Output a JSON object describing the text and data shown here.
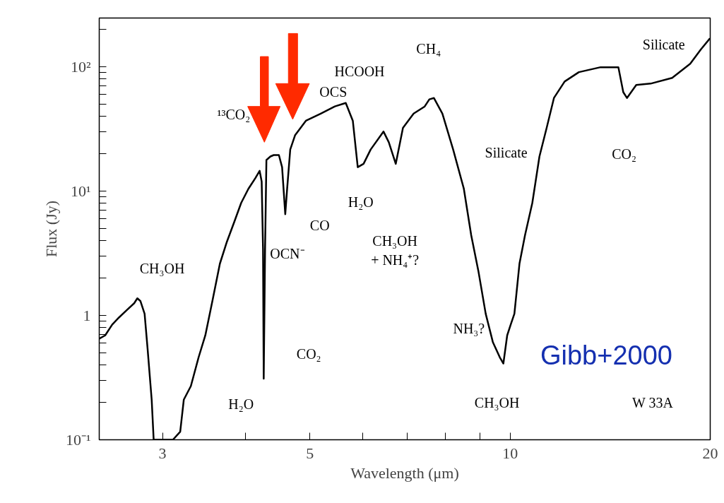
{
  "chart_data": {
    "type": "line",
    "xlabel": "Wavelength (μm)",
    "ylabel": "Flux (Jy)",
    "log": "xy",
    "xlim": [
      2.41,
      20.0
    ],
    "ylim": [
      0.1,
      245
    ],
    "xticks": [
      3,
      {
        "value": 4,
        "label": null
      },
      5,
      {
        "value": 6,
        "label": null
      },
      {
        "value": 7,
        "label": null
      },
      {
        "value": 8,
        "label": null
      },
      {
        "value": 9,
        "label": null
      },
      10,
      20
    ],
    "yticks": [
      {
        "value": 0.1,
        "label": "10⁻¹"
      },
      {
        "value": 0.2,
        "label": null
      },
      {
        "value": 0.3,
        "label": null
      },
      {
        "value": 0.4,
        "label": null
      },
      {
        "value": 0.5,
        "label": null
      },
      {
        "value": 0.6,
        "label": null
      },
      {
        "value": 0.7,
        "label": null
      },
      {
        "value": 0.8,
        "label": null
      },
      {
        "value": 0.9,
        "label": null
      },
      1,
      {
        "value": 2,
        "label": null
      },
      {
        "value": 3,
        "label": null
      },
      {
        "value": 4,
        "label": null
      },
      {
        "value": 5,
        "label": null
      },
      {
        "value": 6,
        "label": null
      },
      {
        "value": 7,
        "label": null
      },
      {
        "value": 8,
        "label": null
      },
      {
        "value": 9,
        "label": null
      },
      {
        "value": 10,
        "label": "10¹"
      },
      {
        "value": 20,
        "label": null
      },
      {
        "value": 30,
        "label": null
      },
      {
        "value": 40,
        "label": null
      },
      {
        "value": 50,
        "label": null
      },
      {
        "value": 60,
        "label": null
      },
      {
        "value": 70,
        "label": null
      },
      {
        "value": 80,
        "label": null
      },
      {
        "value": 90,
        "label": null
      },
      {
        "value": 100,
        "label": "10²"
      },
      {
        "value": 200,
        "label": null
      }
    ],
    "grid": false,
    "series": [
      {
        "color": "#000000",
        "x": [
          2.41,
          2.46,
          2.52,
          2.58,
          2.65,
          2.72,
          2.75,
          2.78,
          2.82,
          2.85,
          2.89,
          2.91,
          3.0,
          3.11,
          3.19,
          3.23,
          3.31,
          3.4,
          3.48,
          3.57,
          3.66,
          3.75,
          3.85,
          3.94,
          4.04,
          4.14,
          4.2,
          4.23,
          4.25,
          4.26,
          4.28,
          4.3,
          4.36,
          4.41,
          4.49,
          4.54,
          4.59,
          4.62,
          4.67,
          4.75,
          4.93,
          5.19,
          5.45,
          5.66,
          5.8,
          5.9,
          6.02,
          6.17,
          6.45,
          6.57,
          6.73,
          6.9,
          7.16,
          7.44,
          7.56,
          7.68,
          7.91,
          8.21,
          8.52,
          8.74,
          8.96,
          9.19,
          9.42,
          9.65,
          9.77,
          9.9,
          10.02,
          10.15,
          10.33,
          10.53,
          10.8,
          11.07,
          11.35,
          11.64,
          12.08,
          12.69,
          13.68,
          14.55,
          14.8,
          14.99,
          15.48,
          16.27,
          17.53,
          18.66,
          19.36,
          19.98
        ],
        "values": [
          0.65,
          0.69,
          0.84,
          0.96,
          1.1,
          1.25,
          1.37,
          1.3,
          1.03,
          0.53,
          0.21,
          0.1,
          0.1,
          0.1,
          0.116,
          0.21,
          0.27,
          0.46,
          0.69,
          1.34,
          2.6,
          3.9,
          5.7,
          8.0,
          10.4,
          12.7,
          14.5,
          11.9,
          3.4,
          0.31,
          3.4,
          17.7,
          18.9,
          19.4,
          19.4,
          15.5,
          6.5,
          10.4,
          21.5,
          28.1,
          36.6,
          41.8,
          47.7,
          50.9,
          36.6,
          15.5,
          16.5,
          21.5,
          30.0,
          24.6,
          16.5,
          32.1,
          41.8,
          47.7,
          54.4,
          55.8,
          41.8,
          21.5,
          10.4,
          4.4,
          2.27,
          1.03,
          0.61,
          0.46,
          0.41,
          0.69,
          0.84,
          1.03,
          2.6,
          4.4,
          8.0,
          18.9,
          32.1,
          55.8,
          75.7,
          90,
          98.6,
          98.6,
          62.1,
          55.8,
          71,
          72.8,
          81,
          105,
          137,
          168
        ]
      }
    ],
    "annotations": [
      "¹³CO₂",
      "OCS",
      "OCN⁻",
      "CO",
      "CO₂",
      "CH₃OH",
      "H₂O",
      "HCOOH",
      "CH₄",
      "H₂O",
      "CH₃OH\n+ NH₄⁺?",
      "Silicate",
      "NH₃?",
      "CH₃OH",
      "CO₂",
      "Silicate",
      "Gibb+2000",
      "W 33A"
    ]
  }
}
